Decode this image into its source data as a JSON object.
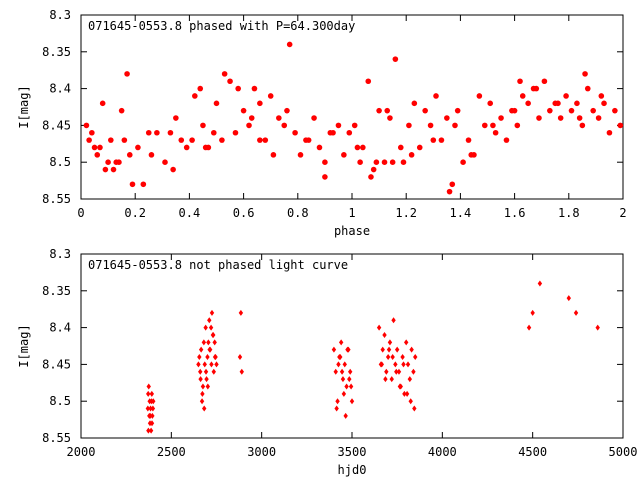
{
  "colors": {
    "points": "#ff0000",
    "axes": "#000000",
    "background": "#ffffff"
  },
  "chart_data": [
    {
      "type": "scatter",
      "title": "071645-0553.8 phased with P=64.300day",
      "xlabel": "phase",
      "ylabel": "I[mag]",
      "xlim": [
        0,
        2
      ],
      "ylim": [
        8.3,
        8.55
      ],
      "y_inverted": true,
      "grid": false,
      "marker": "filled-circle",
      "x_ticks": [
        "0",
        "0.2",
        "0.4",
        "0.6",
        "0.8",
        "1",
        "1.2",
        "1.4",
        "1.6",
        "1.8",
        "2"
      ],
      "y_ticks": [
        "8.3",
        "8.35",
        "8.4",
        "8.45",
        "8.5",
        "8.55"
      ],
      "x": [
        0.02,
        0.03,
        0.04,
        0.05,
        0.06,
        0.08,
        0.09,
        0.1,
        0.11,
        0.12,
        0.13,
        0.15,
        0.16,
        0.17,
        0.18,
        0.21,
        0.23,
        0.25,
        0.28,
        0.31,
        0.33,
        0.35,
        0.37,
        0.39,
        0.42,
        0.44,
        0.45,
        0.47,
        0.49,
        0.52,
        0.53,
        0.55,
        0.58,
        0.6,
        0.62,
        0.64,
        0.66,
        0.68,
        0.71,
        0.73,
        0.75,
        0.77,
        0.79,
        0.81,
        0.83,
        0.86,
        0.88,
        0.9,
        0.93,
        0.95,
        0.97,
        0.99,
        1.01,
        1.03,
        1.04,
        1.06,
        1.07,
        1.09,
        1.1,
        1.12,
        1.14,
        1.16,
        1.18,
        1.19,
        1.21,
        1.23,
        1.25,
        1.27,
        1.29,
        1.31,
        1.33,
        1.35,
        1.37,
        1.39,
        1.41,
        1.43,
        1.45,
        1.47,
        1.49,
        1.51,
        1.53,
        1.55,
        1.57,
        1.59,
        1.61,
        1.63,
        1.65,
        1.67,
        1.69,
        1.71,
        1.73,
        1.75,
        1.77,
        1.79,
        1.81,
        1.83,
        1.85,
        1.87,
        1.89,
        1.91,
        1.93,
        1.95,
        1.97,
        1.99,
        0.07,
        0.14,
        0.26,
        0.34,
        0.41,
        0.5,
        0.57,
        0.63,
        0.7,
        0.76,
        0.84,
        0.92,
        1.02,
        1.08,
        1.15,
        1.22,
        1.3,
        1.38,
        1.44,
        1.52,
        1.6,
        1.68,
        1.76,
        1.84,
        1.92,
        0.19,
        0.46,
        0.66,
        0.9,
        1.13,
        1.36,
        1.62,
        1.86
      ],
      "y": [
        8.45,
        8.47,
        8.46,
        8.48,
        8.49,
        8.42,
        8.51,
        8.5,
        8.47,
        8.51,
        8.5,
        8.43,
        8.47,
        8.38,
        8.49,
        8.48,
        8.53,
        8.46,
        8.46,
        8.5,
        8.46,
        8.44,
        8.47,
        8.48,
        8.41,
        8.4,
        8.45,
        8.48,
        8.46,
        8.47,
        8.38,
        8.39,
        8.4,
        8.43,
        8.45,
        8.4,
        8.42,
        8.47,
        8.49,
        8.44,
        8.45,
        8.34,
        8.46,
        8.49,
        8.47,
        8.44,
        8.48,
        8.5,
        8.46,
        8.45,
        8.49,
        8.46,
        8.45,
        8.5,
        8.48,
        8.39,
        8.52,
        8.5,
        8.43,
        8.5,
        8.44,
        8.36,
        8.48,
        8.5,
        8.45,
        8.42,
        8.48,
        8.43,
        8.45,
        8.41,
        8.47,
        8.44,
        8.53,
        8.43,
        8.5,
        8.47,
        8.49,
        8.41,
        8.45,
        8.42,
        8.46,
        8.44,
        8.47,
        8.43,
        8.45,
        8.41,
        8.42,
        8.4,
        8.44,
        8.39,
        8.43,
        8.42,
        8.44,
        8.41,
        8.43,
        8.42,
        8.45,
        8.4,
        8.43,
        8.44,
        8.42,
        8.46,
        8.43,
        8.45,
        8.48,
        8.5,
        8.49,
        8.51,
        8.47,
        8.42,
        8.46,
        8.44,
        8.41,
        8.43,
        8.47,
        8.46,
        8.48,
        8.51,
        8.5,
        8.49,
        8.47,
        8.45,
        8.49,
        8.45,
        8.43,
        8.4,
        8.42,
        8.44,
        8.41,
        8.53,
        8.48,
        8.47,
        8.52,
        8.43,
        8.54,
        8.39,
        8.38
      ]
    },
    {
      "type": "scatter",
      "title": "071645-0553.8 not phased light curve",
      "xlabel": "hjd0",
      "ylabel": "I[mag]",
      "xlim": [
        2000,
        5000
      ],
      "ylim": [
        8.3,
        8.55
      ],
      "y_inverted": true,
      "grid": false,
      "marker": "small-diamond",
      "x_ticks": [
        "2000",
        "2500",
        "3000",
        "3500",
        "4000",
        "4500",
        "5000"
      ],
      "y_ticks": [
        "8.3",
        "8.35",
        "8.4",
        "8.45",
        "8.5",
        "8.55"
      ],
      "x": [
        2370,
        2372,
        2375,
        2378,
        2380,
        2382,
        2385,
        2388,
        2390,
        2392,
        2395,
        2398,
        2400,
        2373,
        2383,
        2393,
        2650,
        2655,
        2660,
        2665,
        2670,
        2675,
        2680,
        2685,
        2690,
        2695,
        2700,
        2705,
        2710,
        2715,
        2720,
        2725,
        2730,
        2735,
        2740,
        2745,
        2750,
        2662,
        2672,
        2682,
        2692,
        2702,
        2712,
        2722,
        2732,
        2742,
        2880,
        2885,
        2890,
        3400,
        3410,
        3420,
        3430,
        3440,
        3450,
        3460,
        3470,
        3480,
        3490,
        3500,
        3415,
        3425,
        3435,
        3445,
        3455,
        3465,
        3475,
        3485,
        3495,
        3650,
        3660,
        3670,
        3680,
        3690,
        3700,
        3710,
        3720,
        3730,
        3740,
        3750,
        3760,
        3770,
        3780,
        3790,
        3800,
        3810,
        3820,
        3830,
        3840,
        3850,
        3665,
        3685,
        3705,
        3725,
        3745,
        3765,
        3785,
        3805,
        3825,
        3845,
        4480,
        4500,
        4540,
        4700,
        4740,
        4860
      ],
      "y": [
        8.51,
        8.49,
        8.48,
        8.52,
        8.5,
        8.53,
        8.51,
        8.54,
        8.5,
        8.49,
        8.52,
        8.51,
        8.5,
        8.54,
        8.52,
        8.53,
        8.45,
        8.44,
        8.46,
        8.43,
        8.5,
        8.48,
        8.42,
        8.45,
        8.4,
        8.47,
        8.44,
        8.42,
        8.39,
        8.43,
        8.4,
        8.38,
        8.41,
        8.46,
        8.42,
        8.44,
        8.45,
        8.47,
        8.49,
        8.51,
        8.46,
        8.48,
        8.43,
        8.45,
        8.41,
        8.44,
        8.44,
        8.38,
        8.46,
        8.43,
        8.46,
        8.5,
        8.44,
        8.42,
        8.47,
        8.45,
        8.48,
        8.43,
        8.46,
        8.5,
        8.51,
        8.45,
        8.44,
        8.46,
        8.49,
        8.52,
        8.43,
        8.47,
        8.48,
        8.4,
        8.45,
        8.43,
        8.41,
        8.46,
        8.44,
        8.42,
        8.47,
        8.39,
        8.45,
        8.43,
        8.46,
        8.48,
        8.44,
        8.49,
        8.42,
        8.45,
        8.47,
        8.43,
        8.46,
        8.44,
        8.45,
        8.47,
        8.43,
        8.44,
        8.46,
        8.48,
        8.45,
        8.49,
        8.5,
        8.51,
        8.4,
        8.38,
        8.34,
        8.36,
        8.38,
        8.4
      ]
    }
  ]
}
